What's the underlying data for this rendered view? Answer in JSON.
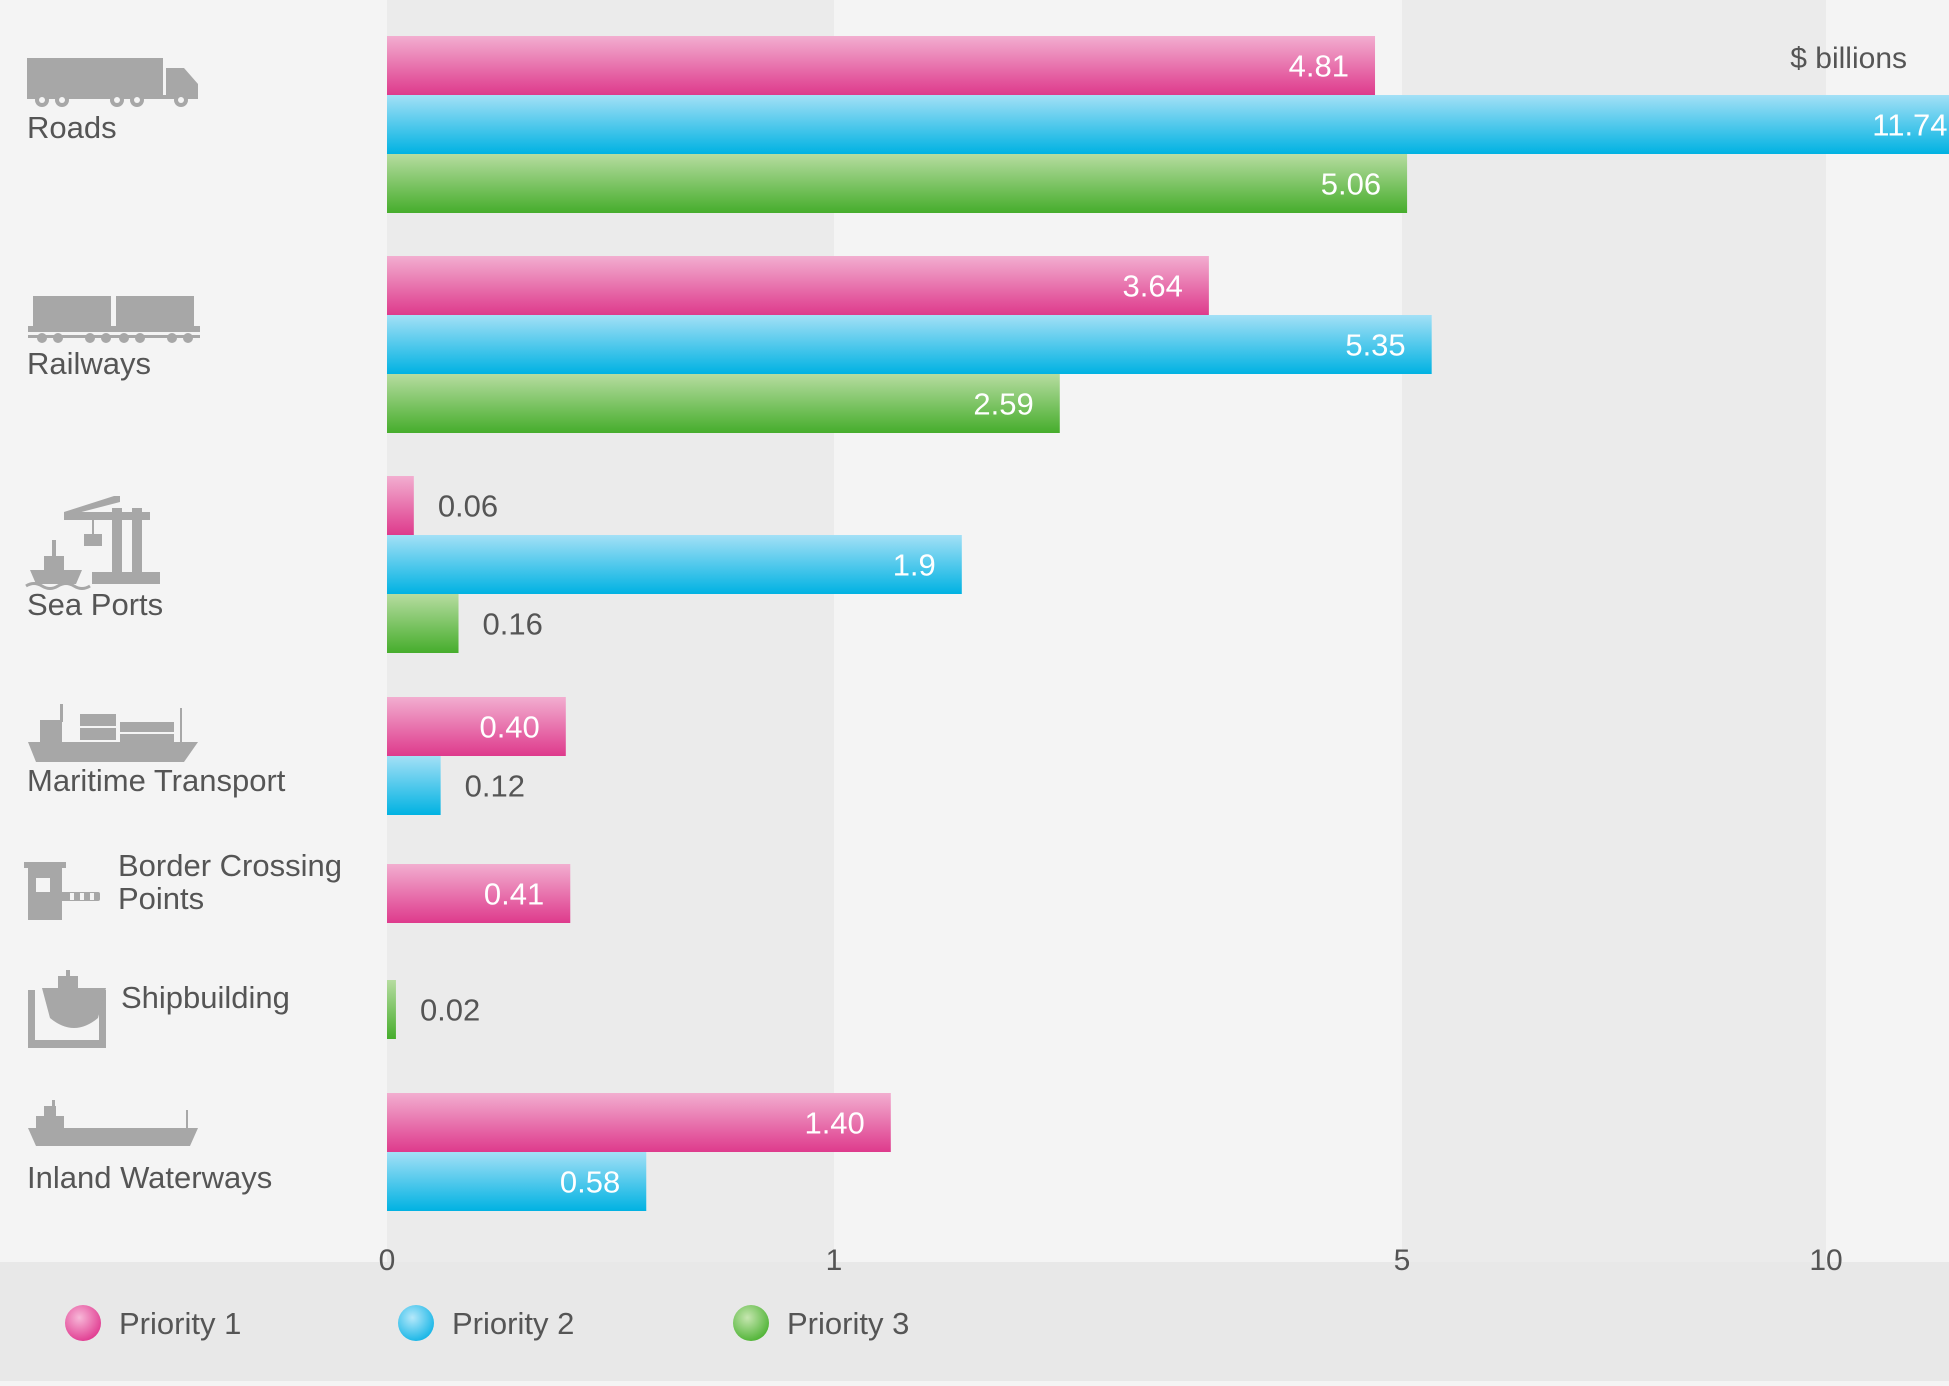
{
  "chart_data": {
    "type": "bar",
    "orientation": "horizontal",
    "unit_label": "$ billions",
    "x_scale": "piecewise-linear",
    "x_ticks": [
      "0",
      "1",
      "5",
      "10"
    ],
    "xlim": [
      0,
      11.74
    ],
    "grid": "alternating-bands",
    "legend_position": "bottom",
    "categories": [
      "Roads",
      "Railways",
      "Sea Ports",
      "Maritime Transport",
      "Border Crossing Points",
      "Shipbuilding",
      "Inland Waterways"
    ],
    "category_label_lines": [
      [
        "Roads"
      ],
      [
        "Railways"
      ],
      [
        "Sea Ports"
      ],
      [
        "Maritime Transport"
      ],
      [
        "Border Crossing",
        "Points"
      ],
      [
        "Shipbuilding"
      ],
      [
        "Inland Waterways"
      ]
    ],
    "category_icons": [
      "truck-icon",
      "train-icon",
      "port-crane-icon",
      "cargo-ship-icon",
      "border-barrier-icon",
      "shipyard-icon",
      "barge-icon"
    ],
    "series": [
      {
        "name": "Priority 1",
        "color": "#e0388f",
        "values": [
          4.81,
          3.64,
          0.06,
          0.4,
          0.41,
          null,
          1.4
        ],
        "labels": [
          "4.81",
          "3.64",
          "0.06",
          "0.40",
          "0.41",
          "",
          "1.40"
        ]
      },
      {
        "name": "Priority 2",
        "color": "#12b4e6",
        "values": [
          11.74,
          5.35,
          1.9,
          0.12,
          null,
          null,
          0.58
        ],
        "labels": [
          "11.74",
          "5.35",
          "1.9",
          "0.12",
          "",
          "",
          "0.58"
        ]
      },
      {
        "name": "Priority 3",
        "color": "#4cb232",
        "values": [
          5.06,
          2.59,
          0.16,
          null,
          null,
          0.02,
          null
        ],
        "labels": [
          "5.06",
          "2.59",
          "0.16",
          "",
          "",
          "0.02",
          ""
        ]
      }
    ]
  }
}
